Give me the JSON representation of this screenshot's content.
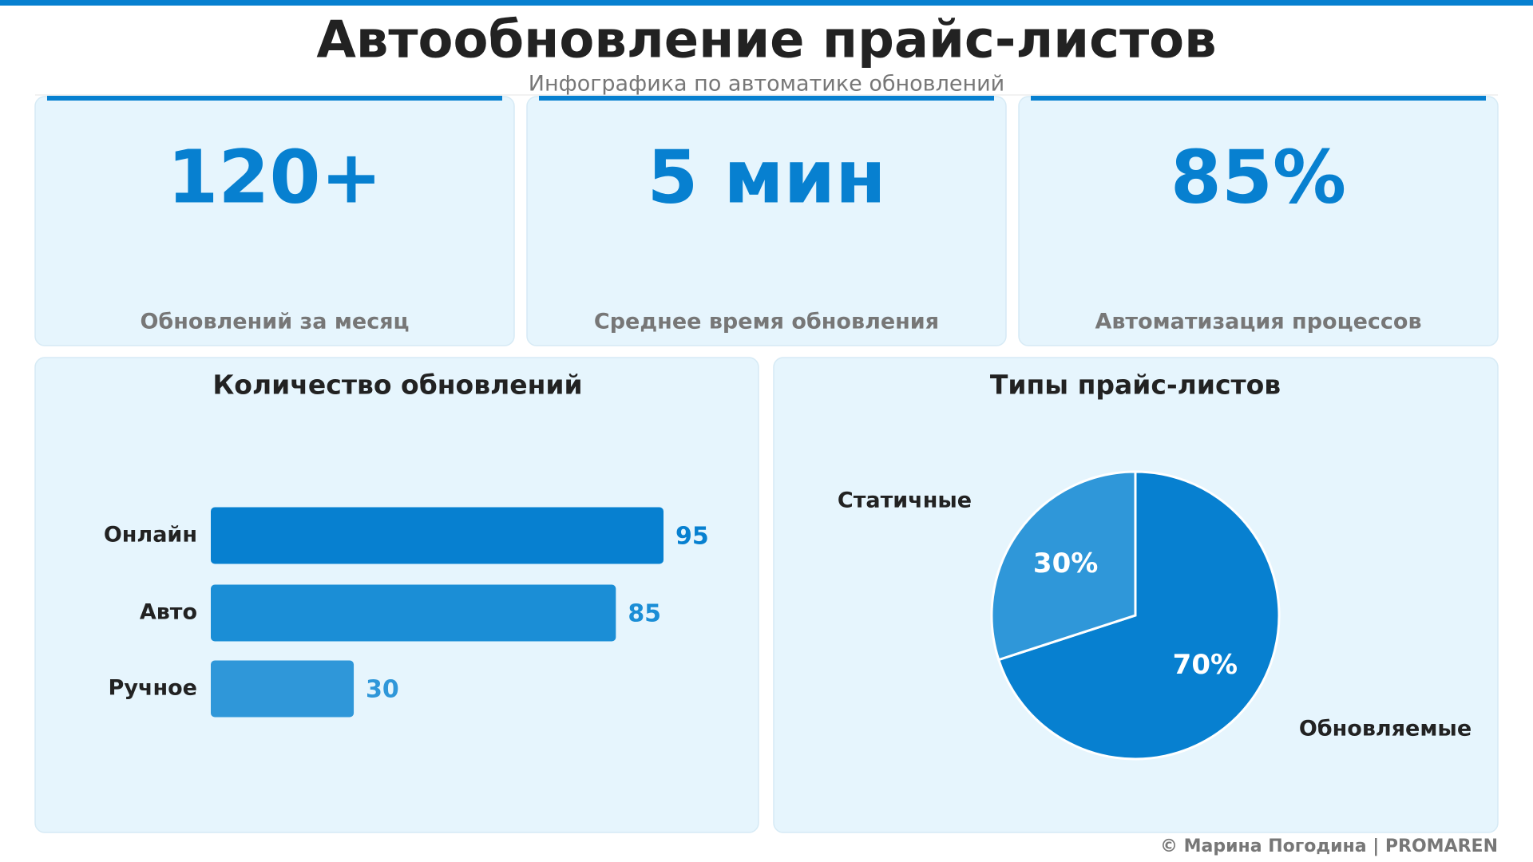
{
  "header": {
    "title": "Автообновление прайс-листов",
    "subtitle": "Инфографика по автоматике обновлений"
  },
  "kpis": [
    {
      "value": "120+",
      "label": "Обновлений за месяц"
    },
    {
      "value": "5 мин",
      "label": "Среднее время обновления"
    },
    {
      "value": "85%",
      "label": "Автоматизация процессов"
    }
  ],
  "chart_data": [
    {
      "type": "bar",
      "title": "Количество обновлений",
      "orientation": "horizontal",
      "categories": [
        "Онлайн",
        "Авто",
        "Ручное"
      ],
      "values": [
        95,
        85,
        30
      ],
      "colors": [
        "#0780d0",
        "#1b8ed6",
        "#2f97d9"
      ]
    },
    {
      "type": "pie",
      "title": "Типы прайс-листов",
      "categories": [
        "Обновляемые",
        "Статичные"
      ],
      "values": [
        70,
        30
      ],
      "value_labels": [
        "70%",
        "30%"
      ],
      "colors": [
        "#0780d0",
        "#2f97d9"
      ]
    }
  ],
  "footer": "© Марина Погодина | PROMAREN"
}
